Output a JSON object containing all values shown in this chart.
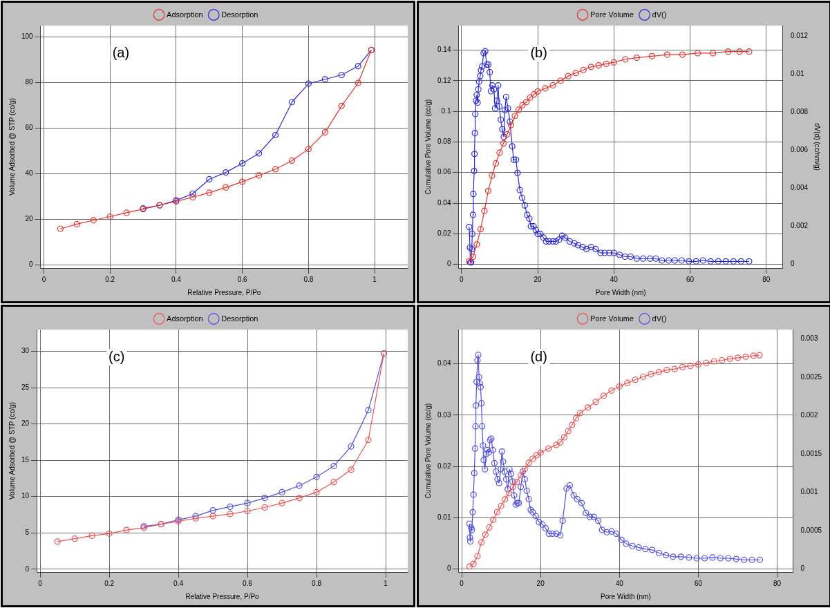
{
  "chart_data": [
    {
      "type": "line",
      "annotations": [
        "(a)"
      ],
      "xlabel": "Relative Pressure, P/Po",
      "ylabel": "Volume Adsorbed @ STP (cc/g)",
      "xlim": [
        -0.01,
        1.1
      ],
      "xticks": [
        0,
        0.2,
        0.4,
        0.6,
        0.8,
        1
      ],
      "ylim": [
        -1.5,
        105
      ],
      "yticks": [
        0,
        20,
        40,
        60,
        80,
        100
      ],
      "grid": true,
      "legend": "top",
      "marker": "circle",
      "line_style": "solid",
      "series": [
        {
          "name": "Adsorption",
          "color": "#e8302a",
          "x": [
            0.05,
            0.1,
            0.15,
            0.2,
            0.25,
            0.3,
            0.35,
            0.4,
            0.45,
            0.5,
            0.55,
            0.6,
            0.65,
            0.7,
            0.75,
            0.8,
            0.85,
            0.9,
            0.95,
            0.99
          ],
          "values": [
            15.8,
            17.8,
            19.5,
            21.1,
            22.8,
            24.4,
            26.1,
            27.8,
            29.6,
            31.6,
            33.9,
            36.4,
            39.2,
            41.9,
            45.7,
            50.8,
            58.1,
            69.7,
            79.8,
            94.3
          ]
        },
        {
          "name": "Desorption",
          "color": "#2a2ad8",
          "x": [
            0.99,
            0.95,
            0.9,
            0.85,
            0.8,
            0.75,
            0.7,
            0.65,
            0.6,
            0.55,
            0.5,
            0.45,
            0.4,
            0.35,
            0.3
          ],
          "values": [
            94.3,
            87.2,
            83.3,
            81.4,
            79.5,
            71.4,
            56.9,
            48.9,
            44.5,
            40.5,
            37.5,
            31.2,
            28.2,
            26.1,
            24.7
          ]
        }
      ]
    },
    {
      "type": "line",
      "annotations": [
        "(b)"
      ],
      "xlabel": "Pore Width (nm)",
      "ylabel": "Cumulative Pore Volume (cc/g)",
      "y2label": "dV(d) (cc/nm/g)",
      "xlim": [
        -0.8,
        84.4
      ],
      "xticks": [
        0,
        20,
        40,
        60,
        80
      ],
      "ylim": [
        -0.0024,
        0.156
      ],
      "yticks": [
        0,
        0.02,
        0.04,
        0.06,
        0.08,
        0.1,
        0.12,
        0.14
      ],
      "y2lim": [
        -0.0002,
        0.01255
      ],
      "y2ticks": [
        0,
        0.002,
        0.004,
        0.006,
        0.008,
        0.01,
        0.012
      ],
      "grid": true,
      "legend": "top",
      "marker": "circle",
      "line_style": "solid",
      "series": [
        {
          "name": "Pore Volume",
          "color": "#e8302a",
          "x": [
            2,
            3,
            4,
            5,
            6,
            7,
            8,
            9,
            10,
            11,
            12,
            13,
            14,
            15,
            16,
            17,
            18,
            19,
            20,
            22,
            24,
            26,
            28,
            30,
            32,
            34,
            36,
            38,
            40,
            43,
            46,
            50,
            54,
            58,
            62,
            66,
            70,
            73,
            75.5
          ],
          "values": [
            0.002,
            0.005,
            0.013,
            0.023,
            0.035,
            0.048,
            0.058,
            0.066,
            0.073,
            0.079,
            0.085,
            0.091,
            0.097,
            0.101,
            0.104,
            0.106,
            0.109,
            0.111,
            0.113,
            0.115,
            0.117,
            0.12,
            0.123,
            0.125,
            0.127,
            0.129,
            0.13,
            0.131,
            0.132,
            0.134,
            0.135,
            0.136,
            0.137,
            0.137,
            0.138,
            0.138,
            0.139,
            0.139,
            0.139
          ]
        },
        {
          "name": "dV()",
          "color": "#2a2ad8",
          "axis": "y2",
          "x": [
            2.0,
            2.2,
            2.3,
            2.5,
            2.7,
            2.8,
            3.0,
            3.1,
            3.3,
            3.4,
            3.5,
            3.6,
            3.8,
            4.0,
            4.2,
            4.4,
            4.6,
            4.9,
            5.1,
            5.4,
            5.8,
            6.2,
            6.6,
            7.0,
            7.4,
            7.7,
            8.1,
            8.5,
            8.8,
            9.3,
            9.6,
            9.9,
            10.3,
            10.7,
            11.1,
            11.4,
            11.7,
            12.2,
            12.7,
            13.3,
            13.7,
            14.3,
            14.7,
            15.3,
            15.9,
            16.6,
            17.2,
            17.8,
            18.2,
            18.9,
            19.5,
            20.0,
            20.7,
            21.5,
            22.2,
            23.0,
            24.0,
            24.8,
            25.6,
            26.4,
            27.2,
            28.4,
            29.6,
            30.6,
            31.8,
            32.8,
            34.0,
            35.2,
            36.5,
            37.6,
            38.8,
            40.0,
            41.5,
            42.9,
            44.4,
            46.0,
            47.7,
            49.5,
            51.0,
            52.6,
            54.4,
            56.0,
            57.8,
            59.7,
            61.6,
            63.4,
            65.4,
            67.4,
            69.4,
            71.4,
            73.4,
            75.5
          ],
          "values": [
            0.00196,
            0.00088,
            0.0001,
            0.0001,
            0.0008,
            0.0016,
            0.0026,
            0.0037,
            0.0049,
            0.0058,
            0.0069,
            0.0079,
            0.0086,
            0.0089,
            0.0085,
            0.0092,
            0.0096,
            0.0099,
            0.0102,
            0.0104,
            0.0111,
            0.0112,
            0.0105,
            0.0105,
            0.0101,
            0.0091,
            0.0094,
            0.0092,
            0.0082,
            0.0086,
            0.0094,
            0.0083,
            0.0076,
            0.0071,
            0.0067,
            0.0081,
            0.0088,
            0.0082,
            0.0075,
            0.0062,
            0.0055,
            0.0055,
            0.0048,
            0.0039,
            0.0035,
            0.0031,
            0.0026,
            0.0024,
            0.002,
            0.002,
            0.0018,
            0.0016,
            0.0016,
            0.0014,
            0.0012,
            0.0012,
            0.0012,
            0.0012,
            0.0013,
            0.0015,
            0.0014,
            0.0012,
            0.0011,
            0.001,
            0.0009,
            0.0008,
            0.0009,
            0.0008,
            0.0006,
            0.0006,
            0.0006,
            0.0006,
            0.0005,
            0.0004,
            0.0004,
            0.0003,
            0.0003,
            0.0003,
            0.0003,
            0.0002,
            0.0002,
            0.0002,
            0.0002,
            0.00015,
            0.00015,
            0.0002,
            0.00015,
            0.00015,
            0.00015,
            0.00015,
            0.00015,
            0.00015
          ]
        }
      ]
    },
    {
      "type": "line",
      "annotations": [
        "(c)"
      ],
      "xlabel": "Relative Pressure, P/Po",
      "ylabel": "Volume Adsorbed @ STP (cc/g)",
      "xlim": [
        -0.01,
        1.064
      ],
      "xticks": [
        0,
        0.2,
        0.4,
        0.6,
        0.8,
        1
      ],
      "ylim": [
        -0.4,
        33
      ],
      "yticks": [
        0,
        5,
        10,
        15,
        20,
        25,
        30
      ],
      "grid": true,
      "legend": "top",
      "marker": "circle",
      "line_style": "solid",
      "series": [
        {
          "name": "Adsorption",
          "color": "#f05050",
          "x": [
            0.05,
            0.1,
            0.15,
            0.2,
            0.25,
            0.3,
            0.35,
            0.4,
            0.45,
            0.5,
            0.55,
            0.6,
            0.65,
            0.7,
            0.75,
            0.8,
            0.85,
            0.9,
            0.95,
            0.995
          ],
          "values": [
            3.8,
            4.2,
            4.6,
            4.9,
            5.4,
            5.7,
            6.2,
            6.6,
            7.0,
            7.3,
            7.6,
            8.0,
            8.5,
            9.1,
            9.8,
            10.6,
            12.0,
            13.7,
            17.8,
            29.7
          ]
        },
        {
          "name": "Desorption",
          "color": "#5050e0",
          "x": [
            0.995,
            0.95,
            0.9,
            0.85,
            0.8,
            0.75,
            0.7,
            0.65,
            0.6,
            0.55,
            0.5,
            0.45,
            0.4,
            0.35,
            0.3
          ],
          "values": [
            29.7,
            21.9,
            16.9,
            14.2,
            12.7,
            11.5,
            10.6,
            9.8,
            9.1,
            8.6,
            8.1,
            7.3,
            6.8,
            6.2,
            5.9
          ]
        }
      ]
    },
    {
      "type": "line",
      "annotations": [
        "(d)"
      ],
      "xlabel": "Pore Width (nm)",
      "ylabel": "Cumulative Pore Volume (cc/g)",
      "xlim": [
        -0.8,
        84
      ],
      "xticks": [
        0,
        20,
        40,
        60,
        80
      ],
      "ylim": [
        -0.0006,
        0.0467
      ],
      "yticks": [
        0,
        0.01,
        0.02,
        0.03,
        0.04
      ],
      "y2lim": [
        -4e-05,
        0.00312
      ],
      "y2ticks": [
        0,
        0.0005,
        0.001,
        0.0015,
        0.002,
        0.0025,
        0.003
      ],
      "grid": true,
      "legend": "top",
      "marker": "circle",
      "line_style": "solid",
      "series": [
        {
          "name": "Pore Volume",
          "color": "#f05050",
          "x": [
            2,
            3,
            4,
            5,
            6,
            7,
            8,
            9,
            10,
            11,
            12,
            13,
            14,
            15,
            16,
            17,
            18,
            19,
            20,
            22,
            24,
            25,
            26,
            27,
            28,
            29,
            30,
            32,
            34,
            36,
            38,
            40,
            42,
            44,
            46,
            48,
            50,
            52,
            54,
            56,
            58,
            60,
            62,
            64,
            66,
            68,
            70,
            72,
            74,
            75.5
          ],
          "values": [
            0.0005,
            0.001,
            0.0025,
            0.0052,
            0.0067,
            0.0081,
            0.0096,
            0.0111,
            0.0123,
            0.0136,
            0.0148,
            0.016,
            0.017,
            0.0183,
            0.0195,
            0.0207,
            0.0215,
            0.0222,
            0.0227,
            0.0235,
            0.0242,
            0.0247,
            0.0257,
            0.0269,
            0.0281,
            0.0294,
            0.0304,
            0.0315,
            0.0326,
            0.0338,
            0.0348,
            0.0356,
            0.0363,
            0.0369,
            0.0375,
            0.038,
            0.0384,
            0.0388,
            0.039,
            0.0394,
            0.0396,
            0.0399,
            0.0402,
            0.0405,
            0.0407,
            0.041,
            0.0412,
            0.0414,
            0.0416,
            0.0417
          ]
        },
        {
          "name": "dV()",
          "color": "#5050e0",
          "axis": "y2",
          "x": [
            2.0,
            2.1,
            2.2,
            2.4,
            2.6,
            2.8,
            3.0,
            3.2,
            3.4,
            3.5,
            3.6,
            3.8,
            4.0,
            4.2,
            4.4,
            4.6,
            4.8,
            5.0,
            5.2,
            5.4,
            5.6,
            5.9,
            6.2,
            6.5,
            6.9,
            7.2,
            7.5,
            7.9,
            8.3,
            8.7,
            9.1,
            9.5,
            9.9,
            10.2,
            10.5,
            10.9,
            11.3,
            11.7,
            12.1,
            12.5,
            12.9,
            13.3,
            13.7,
            14.1,
            14.5,
            15.0,
            15.5,
            16.0,
            16.5,
            17.0,
            17.5,
            18.0,
            18.8,
            19.6,
            20.5,
            21.3,
            22.1,
            23.0,
            24.0,
            25.0,
            25.6,
            26.6,
            27.4,
            28.4,
            29.3,
            30.4,
            31.5,
            32.5,
            33.5,
            34.6,
            35.6,
            36.8,
            38.0,
            39.2,
            40.5,
            41.7,
            43.3,
            44.9,
            46.6,
            48.3,
            50.0,
            51.8,
            53.6,
            55.6,
            57.6,
            59.6,
            61.6,
            63.6,
            65.6,
            67.6,
            69.6,
            71.6,
            73.6,
            75.6
          ],
          "values": [
            0.00059,
            0.00041,
            0.00036,
            0.00054,
            0.00051,
            0.00074,
            0.00097,
            0.00125,
            0.00157,
            0.00186,
            0.00213,
            0.00244,
            0.00272,
            0.00279,
            0.0025,
            0.00242,
            0.00237,
            0.00216,
            0.00186,
            0.00161,
            0.00142,
            0.0013,
            0.0015,
            0.00155,
            0.00152,
            0.00168,
            0.0017,
            0.00155,
            0.00138,
            0.00127,
            0.00117,
            0.00112,
            0.0013,
            0.00153,
            0.0014,
            0.00127,
            0.00117,
            0.00104,
            0.0013,
            0.00124,
            0.00114,
            0.00096,
            0.00084,
            0.00086,
            0.00086,
            0.00107,
            0.00127,
            0.00117,
            0.00102,
            0.00091,
            0.00077,
            0.00074,
            0.00069,
            0.00061,
            0.00058,
            0.00053,
            0.00046,
            0.00046,
            0.00046,
            0.00044,
            0.00063,
            0.00105,
            0.00109,
            0.00096,
            0.00091,
            0.00086,
            0.00073,
            0.00068,
            0.00068,
            0.00063,
            0.00051,
            0.00048,
            0.00049,
            0.00046,
            0.00038,
            0.00033,
            0.0003,
            0.00028,
            0.00026,
            0.00025,
            0.00021,
            0.00018,
            0.00016,
            0.00016,
            0.00015,
            0.00014,
            0.00014,
            0.00015,
            0.00014,
            0.00014,
            0.00013,
            0.00012,
            0.00012,
            0.00012
          ]
        }
      ]
    }
  ]
}
